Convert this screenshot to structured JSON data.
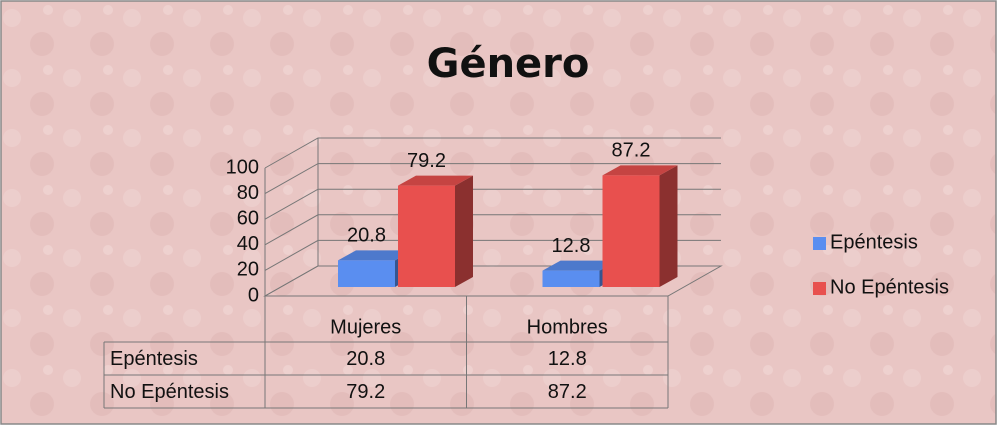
{
  "chart_data": {
    "type": "bar3d",
    "title": "Género",
    "categories": [
      "Mujeres",
      "Hombres"
    ],
    "series": [
      {
        "name": "Epéntesis",
        "color": "#5a8ef0",
        "values": [
          20.8,
          12.8
        ]
      },
      {
        "name": "No Epéntesis",
        "color": "#e8504e",
        "values": [
          79.2,
          87.2
        ]
      }
    ],
    "ylim": [
      0,
      100
    ],
    "yticks": [
      0,
      20,
      40,
      60,
      80,
      100
    ],
    "grid": true,
    "legend": "right",
    "data_table": true
  }
}
